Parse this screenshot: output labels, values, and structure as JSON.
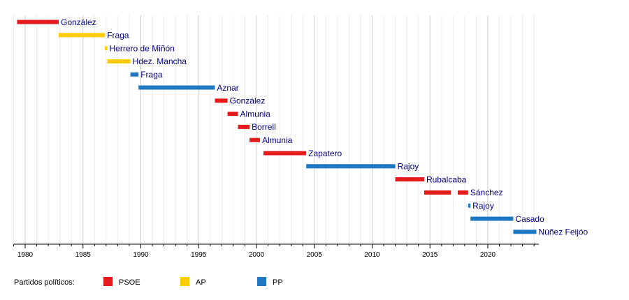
{
  "chart_data": {
    "type": "bar",
    "subtype": "timeline",
    "title": "",
    "xlabel": "",
    "ylabel": "",
    "xlim": [
      1979.0,
      2024.4
    ],
    "xticks": [
      1980,
      1985,
      1990,
      1995,
      2000,
      2005,
      2010,
      2015,
      2020
    ],
    "grid": "vertical, every year",
    "parties": [
      {
        "name": "PSOE",
        "color": "#e41a1c"
      },
      {
        "name": "AP",
        "color": "#ffcc00"
      },
      {
        "name": "PP",
        "color": "#1f78c1"
      }
    ],
    "legend": {
      "title": "Partidos políticos:",
      "position": "bottom-left"
    },
    "series": [
      {
        "label": "González",
        "party": "PSOE",
        "spans": [
          [
            1979.3,
            1982.9
          ]
        ]
      },
      {
        "label": "Fraga",
        "party": "AP",
        "spans": [
          [
            1982.9,
            1986.9
          ]
        ]
      },
      {
        "label": "Herrero de Miñón",
        "party": "AP",
        "spans": [
          [
            1986.9,
            1987.1
          ]
        ]
      },
      {
        "label": "Hdez. Mancha",
        "party": "AP",
        "spans": [
          [
            1987.1,
            1989.1
          ]
        ]
      },
      {
        "label": "Fraga",
        "party": "PP",
        "spans": [
          [
            1989.1,
            1989.8
          ]
        ]
      },
      {
        "label": "Aznar",
        "party": "PP",
        "spans": [
          [
            1989.8,
            1996.4
          ]
        ]
      },
      {
        "label": "González",
        "party": "PSOE",
        "spans": [
          [
            1996.4,
            1997.5
          ]
        ]
      },
      {
        "label": "Almunia",
        "party": "PSOE",
        "spans": [
          [
            1997.5,
            1998.4
          ]
        ]
      },
      {
        "label": "Borrell",
        "party": "PSOE",
        "spans": [
          [
            1998.4,
            1999.4
          ]
        ]
      },
      {
        "label": "Almunia",
        "party": "PSOE",
        "spans": [
          [
            1999.4,
            2000.3
          ]
        ]
      },
      {
        "label": "Zapatero",
        "party": "PSOE",
        "spans": [
          [
            2000.6,
            2004.3
          ]
        ]
      },
      {
        "label": "Rajoy",
        "party": "PP",
        "spans": [
          [
            2004.3,
            2012.0
          ]
        ]
      },
      {
        "label": "Rubalcaba",
        "party": "PSOE",
        "spans": [
          [
            2012.0,
            2014.5
          ]
        ]
      },
      {
        "label": "Sánchez",
        "party": "PSOE",
        "spans": [
          [
            2014.5,
            2016.8
          ],
          [
            2017.4,
            2018.3
          ]
        ]
      },
      {
        "label": "Rajoy",
        "party": "PP",
        "spans": [
          [
            2018.3,
            2018.5
          ]
        ]
      },
      {
        "label": "Casado",
        "party": "PP",
        "spans": [
          [
            2018.5,
            2022.2
          ]
        ]
      },
      {
        "label": "Núñez Feijóo",
        "party": "PP",
        "spans": [
          [
            2022.2,
            2024.2
          ]
        ]
      }
    ]
  }
}
